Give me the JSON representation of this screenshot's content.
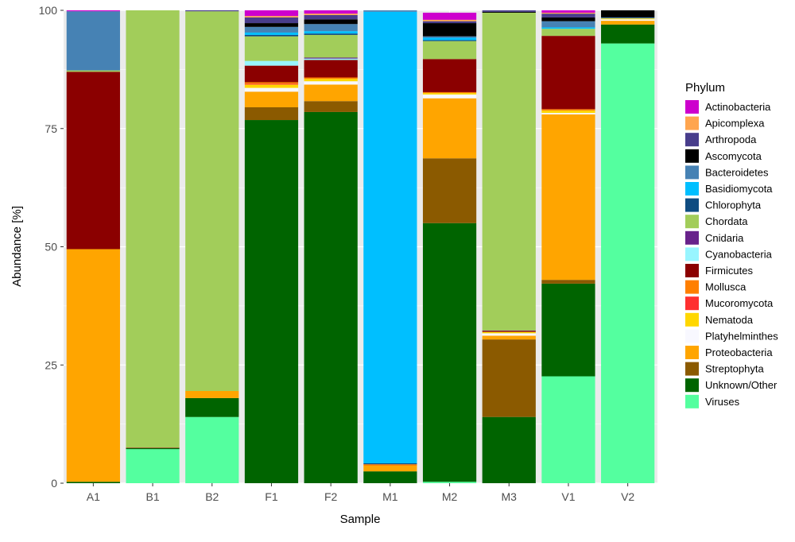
{
  "chart_data": {
    "type": "bar",
    "stacked": true,
    "xlabel": "Sample",
    "ylabel": "Abundance [%]",
    "ylim": [
      0,
      100
    ],
    "yticks": [
      "0",
      "25",
      "50",
      "75",
      "100"
    ],
    "grid": true,
    "legend_title": "Phylum",
    "legend_position": "right",
    "categories": [
      "A1",
      "B1",
      "B2",
      "F1",
      "F2",
      "M1",
      "M2",
      "M3",
      "V1",
      "V2"
    ],
    "series": [
      {
        "name": "Viruses",
        "color": "#54FF9F",
        "values": [
          0,
          7.2,
          14,
          0,
          0,
          0,
          0.3,
          0,
          22.6,
          93
        ]
      },
      {
        "name": "Unknown/Other",
        "color": "#006400",
        "values": [
          0.3,
          0.2,
          4,
          76.8,
          78.5,
          2.5,
          54.7,
          14,
          19.6,
          4
        ]
      },
      {
        "name": "Streptophyta",
        "color": "#8B5A00",
        "values": [
          0,
          0,
          0,
          2.7,
          2.3,
          0,
          13.7,
          16.4,
          0.8,
          0
        ]
      },
      {
        "name": "Proteobacteria",
        "color": "#FFA500",
        "values": [
          49.2,
          0,
          1.5,
          3.3,
          3.5,
          1.2,
          12.7,
          0.8,
          35,
          0.8
        ]
      },
      {
        "name": "Platyhelminthes",
        "color": "#F8F8FF",
        "values": [
          0,
          0,
          0,
          0.8,
          0.7,
          0,
          0.8,
          0.5,
          0.3,
          0.3
        ]
      },
      {
        "name": "Nematoda",
        "color": "#FFD700",
        "values": [
          0,
          0,
          0,
          0.7,
          0.5,
          0,
          0.3,
          0.3,
          0.5,
          0.2
        ]
      },
      {
        "name": "Mucoromycota",
        "color": "#FF3030",
        "values": [
          0,
          0,
          0,
          0.2,
          0,
          0,
          0,
          0,
          0,
          0
        ]
      },
      {
        "name": "Mollusca",
        "color": "#FF7F00",
        "values": [
          0,
          0,
          0,
          0.3,
          0.3,
          0.3,
          0.2,
          0,
          0.3,
          0
        ]
      },
      {
        "name": "Firmicutes",
        "color": "#8B0000",
        "values": [
          37.5,
          0.1,
          0,
          3.5,
          3.7,
          0,
          7,
          0.2,
          15.5,
          0
        ]
      },
      {
        "name": "Cyanobacteria",
        "color": "#98F5FF",
        "values": [
          0,
          0,
          0,
          1,
          0.3,
          0,
          0,
          0,
          0,
          0
        ]
      },
      {
        "name": "Cnidaria",
        "color": "#68228B",
        "values": [
          0,
          0,
          0,
          0,
          0.2,
          0,
          0,
          0.1,
          0,
          0
        ]
      },
      {
        "name": "Chordata",
        "color": "#A2CD5A",
        "values": [
          0.3,
          92.5,
          80.3,
          5.2,
          4.8,
          0,
          3.8,
          67.2,
          1.5,
          0
        ]
      },
      {
        "name": "Chlorophyta",
        "color": "#0F4C81",
        "values": [
          0,
          0,
          0,
          0.3,
          0.3,
          0.2,
          0.2,
          0,
          0,
          0
        ]
      },
      {
        "name": "Basidiomycota",
        "color": "#00BFFF",
        "values": [
          0,
          0,
          0,
          0.5,
          0.5,
          95.5,
          0.5,
          0,
          0.3,
          0
        ]
      },
      {
        "name": "Bacteroidetes",
        "color": "#4682B4",
        "values": [
          12.5,
          0,
          0,
          1.2,
          1.5,
          0.3,
          0.3,
          0,
          1.3,
          0.2
        ]
      },
      {
        "name": "Ascomycota",
        "color": "#000000",
        "values": [
          0,
          0,
          0,
          0.8,
          1,
          0,
          2.8,
          0.2,
          0.8,
          1.5
        ]
      },
      {
        "name": "Arthropoda",
        "color": "#483D8B",
        "values": [
          0,
          0,
          0.2,
          1.2,
          0.9,
          0,
          0.4,
          0.3,
          0.8,
          0
        ]
      },
      {
        "name": "Apicomplexa",
        "color": "#FFA54F",
        "values": [
          0,
          0,
          0,
          0.3,
          0.3,
          0,
          0.3,
          0,
          0.2,
          0
        ]
      },
      {
        "name": "Actinobacteria",
        "color": "#CD00CD",
        "values": [
          0.2,
          0,
          0,
          1.2,
          1.2,
          0,
          1.5,
          0.5,
          0.8,
          0
        ]
      }
    ],
    "legend_order": [
      "Actinobacteria",
      "Apicomplexa",
      "Arthropoda",
      "Ascomycota",
      "Bacteroidetes",
      "Basidiomycota",
      "Chlorophyta",
      "Chordata",
      "Cnidaria",
      "Cyanobacteria",
      "Firmicutes",
      "Mollusca",
      "Mucoromycota",
      "Nematoda",
      "Platyhelminthes",
      "Proteobacteria",
      "Streptophyta",
      "Unknown/Other",
      "Viruses"
    ]
  }
}
